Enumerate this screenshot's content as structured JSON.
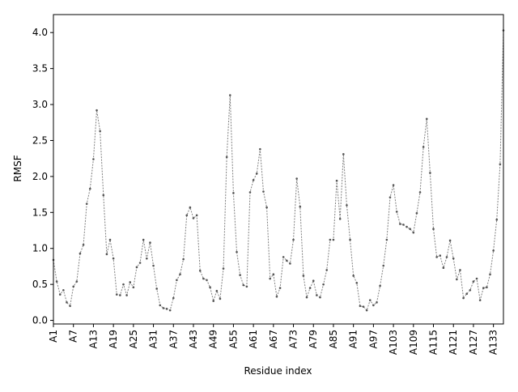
{
  "chart_data": {
    "type": "line",
    "xlabel": "Residue index",
    "ylabel": "RMSF",
    "ylim": [
      -0.05,
      4.25
    ],
    "yticks": [
      "0.0",
      "0.5",
      "1.0",
      "1.5",
      "2.0",
      "2.5",
      "3.0",
      "3.5",
      "4.0"
    ],
    "xtick_labels": [
      "A1",
      "A7",
      "A13",
      "A19",
      "A25",
      "A31",
      "A37",
      "A43",
      "A49",
      "A55",
      "A61",
      "A67",
      "A73",
      "A79",
      "A85",
      "A91",
      "A97",
      "A103",
      "A109",
      "A115",
      "A121",
      "A127",
      "A133"
    ],
    "grid": false,
    "line_color": "#808080",
    "marker_color": "#555555",
    "series": [
      {
        "values": [
          0.84,
          0.54,
          0.36,
          0.42,
          0.25,
          0.2,
          0.47,
          0.54,
          0.93,
          1.05,
          1.62,
          1.83,
          2.24,
          2.92,
          2.63,
          1.74,
          0.92,
          1.12,
          0.86,
          0.36,
          0.35,
          0.5,
          0.35,
          0.53,
          0.46,
          0.74,
          0.8,
          1.12,
          0.86,
          1.08,
          0.76,
          0.44,
          0.21,
          0.17,
          0.16,
          0.14,
          0.31,
          0.56,
          0.64,
          0.85,
          1.46,
          1.57,
          1.42,
          1.46,
          0.69,
          0.58,
          0.56,
          0.46,
          0.27,
          0.41,
          0.3,
          0.72,
          2.27,
          3.13,
          1.77,
          0.95,
          0.63,
          0.49,
          0.47,
          1.78,
          1.95,
          2.04,
          2.38,
          1.79,
          1.57,
          0.58,
          0.64,
          0.33,
          0.45,
          0.88,
          0.83,
          0.79,
          1.12,
          1.97,
          1.58,
          0.62,
          0.32,
          0.45,
          0.55,
          0.35,
          0.32,
          0.5,
          0.7,
          1.12,
          1.12,
          1.94,
          1.41,
          2.31,
          1.6,
          1.12,
          0.62,
          0.52,
          0.2,
          0.19,
          0.14,
          0.28,
          0.21,
          0.25,
          0.48,
          0.76,
          1.12,
          1.71,
          1.88,
          1.51,
          1.34,
          1.33,
          1.3,
          1.27,
          1.22,
          1.49,
          1.78,
          2.41,
          2.8,
          2.05,
          1.27,
          0.88,
          0.9,
          0.73,
          0.88,
          1.11,
          0.86,
          0.57,
          0.7,
          0.31,
          0.37,
          0.42,
          0.54,
          0.58,
          0.28,
          0.45,
          0.46,
          0.64,
          0.97,
          1.4,
          2.17,
          4.03
        ]
      }
    ]
  }
}
